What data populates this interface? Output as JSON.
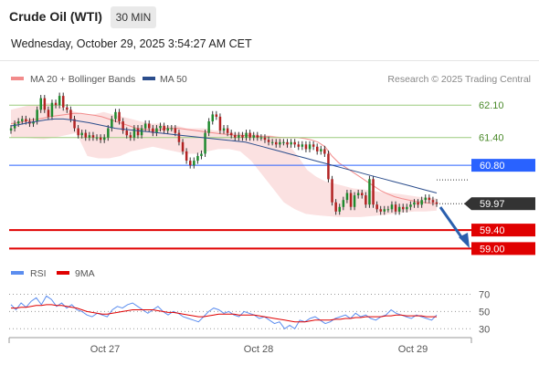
{
  "header": {
    "title": "Crude Oil (WTI)",
    "timeframe": "30 MIN",
    "datetime": "Wednesday, October 29, 2025 3:54:27 AM CET"
  },
  "legend": {
    "bb_label": "MA 20 + Bollinger Bands",
    "ma50_label": "MA 50",
    "credit": "Research © 2025 Trading Central",
    "rsi_label": "RSI",
    "rsi_ma_label": "9MA"
  },
  "colors": {
    "bull": "#1f8a2e",
    "bear": "#b22222",
    "bb_fill": "#fbe1e1",
    "bb_line": "#f28b8b",
    "ma50": "#2b4d8c",
    "level_green": "#9ccc7e",
    "level_blue": "#2962ff",
    "level_red": "#e00000",
    "rsi": "#5b8def",
    "rsi_ma": "#e00000"
  },
  "chart_data": [
    {
      "type": "candlestick",
      "x_tick_labels": [
        "Oct 27",
        "Oct 28",
        "Oct 29"
      ],
      "y_range": [
        58.85,
        62.4
      ],
      "last_price": 59.97,
      "levels": [
        {
          "value": 62.1,
          "label": "62.10",
          "kind": "resistance"
        },
        {
          "value": 61.4,
          "label": "61.40",
          "kind": "resistance"
        },
        {
          "value": 60.8,
          "label": "60.80",
          "kind": "pivot"
        },
        {
          "value": 59.4,
          "label": "59.40",
          "kind": "support"
        },
        {
          "value": 59.0,
          "label": "59.00",
          "kind": "support"
        }
      ],
      "last_price_label": "59.97",
      "closes": [
        61.6,
        61.7,
        61.75,
        61.8,
        61.75,
        61.7,
        61.75,
        62.0,
        62.25,
        62.0,
        61.85,
        62.15,
        62.1,
        62.3,
        62.05,
        62.0,
        61.8,
        61.6,
        61.45,
        61.5,
        61.4,
        61.45,
        61.4,
        61.4,
        61.35,
        61.4,
        61.6,
        61.8,
        61.95,
        61.75,
        61.55,
        61.45,
        61.4,
        61.6,
        61.45,
        61.6,
        61.7,
        61.6,
        61.5,
        61.6,
        61.65,
        61.55,
        61.6,
        61.6,
        61.5,
        61.3,
        61.1,
        60.9,
        60.8,
        60.9,
        61.0,
        61.05,
        61.5,
        61.75,
        61.9,
        61.85,
        61.55,
        61.6,
        61.5,
        61.45,
        61.4,
        61.45,
        61.4,
        61.5,
        61.4,
        61.45,
        61.4,
        61.4,
        61.35,
        61.3,
        61.3,
        61.25,
        61.3,
        61.3,
        61.25,
        61.3,
        61.25,
        61.2,
        61.25,
        61.15,
        61.25,
        61.2,
        61.1,
        61.15,
        61.05,
        60.5,
        60.0,
        59.8,
        59.9,
        60.05,
        60.2,
        59.9,
        60.15,
        60.2,
        60.15,
        59.95,
        60.5,
        59.95,
        59.85,
        59.8,
        59.85,
        59.85,
        59.95,
        59.8,
        59.9,
        59.85,
        59.9,
        59.95,
        60.0,
        59.95,
        60.05,
        60.1,
        60.05,
        60.0,
        59.97
      ],
      "bollinger_mid": [
        61.7,
        61.72,
        61.75,
        61.78,
        61.8,
        61.83,
        61.86,
        61.88,
        61.9,
        61.92,
        61.92,
        61.9,
        61.88,
        61.85,
        61.8,
        61.75,
        61.7,
        61.65,
        61.6,
        61.58,
        61.56,
        61.55,
        61.6,
        61.6,
        61.6,
        61.58,
        61.56,
        61.54,
        61.52,
        61.5,
        61.48,
        61.47,
        61.45,
        61.45,
        61.44,
        61.43,
        61.42,
        61.42,
        61.41,
        61.4,
        61.4,
        61.4,
        61.38,
        61.35,
        61.3,
        61.2,
        61.0,
        60.85,
        60.75,
        60.65,
        60.55,
        60.45,
        60.35,
        60.25,
        60.18,
        60.12,
        60.08,
        60.05,
        60.02,
        60.0,
        59.98,
        59.97
      ],
      "bollinger_upper": [
        62.0,
        62.05,
        62.1,
        62.1,
        62.15,
        62.1,
        62.0,
        61.95,
        61.9,
        61.9,
        61.95,
        61.9,
        61.85,
        61.8,
        61.75,
        61.7,
        61.7,
        61.65,
        61.65,
        61.6,
        61.6,
        61.6,
        61.55,
        61.55,
        61.5,
        61.5,
        61.5,
        61.45,
        61.45,
        61.4,
        61.25,
        61.0,
        60.7,
        60.55,
        60.45,
        60.4,
        60.35,
        60.3,
        60.28,
        60.25,
        60.22,
        60.2,
        60.18,
        60.15,
        60.12,
        60.1,
        60.08
      ],
      "bollinger_lower": [
        61.4,
        61.4,
        61.38,
        61.36,
        61.4,
        61.45,
        61.5,
        61.0,
        60.95,
        60.95,
        61.0,
        61.1,
        61.15,
        61.2,
        61.15,
        61.1,
        61.05,
        61.05,
        61.1,
        61.15,
        61.15,
        61.1,
        60.9,
        60.6,
        60.3,
        60.0,
        59.85,
        59.75,
        59.72,
        59.7,
        59.68,
        59.68,
        59.68,
        59.7,
        59.72,
        59.75,
        59.78,
        59.8,
        59.8,
        59.82
      ],
      "ma50": [
        61.65,
        61.68,
        61.72,
        61.75,
        61.78,
        61.8,
        61.8,
        61.78,
        61.75,
        61.72,
        61.68,
        61.64,
        61.6,
        61.58,
        61.56,
        61.54,
        61.52,
        61.5,
        61.48,
        61.46,
        61.44,
        61.42,
        61.4,
        61.38,
        61.36,
        61.34,
        61.32,
        61.3,
        61.25,
        61.2,
        61.15,
        61.1,
        61.05,
        61.0,
        60.95,
        60.9,
        60.85,
        60.8,
        60.75,
        60.7,
        60.65,
        60.6,
        60.55,
        60.5,
        60.45,
        60.4,
        60.35,
        60.3,
        60.25,
        60.2
      ]
    },
    {
      "type": "line",
      "name": "RSI panel",
      "y_range": [
        25,
        78
      ],
      "y_ticks": [
        70,
        50,
        30
      ],
      "y_tick_labels": [
        "70",
        "50",
        "30"
      ],
      "series": [
        {
          "name": "RSI",
          "values": [
            58,
            52,
            60,
            55,
            62,
            66,
            58,
            68,
            64,
            56,
            60,
            54,
            58,
            52,
            50,
            46,
            44,
            48,
            46,
            44,
            52,
            56,
            54,
            58,
            60,
            56,
            52,
            48,
            52,
            56,
            50,
            46,
            50,
            48,
            44,
            42,
            40,
            38,
            44,
            50,
            54,
            52,
            48,
            50,
            46,
            44,
            50,
            48,
            46,
            42,
            44,
            40,
            36,
            38,
            30,
            34,
            30,
            40,
            38,
            42,
            44,
            40,
            36,
            38,
            42,
            44,
            46,
            42,
            48,
            44,
            46,
            42,
            40,
            44,
            46,
            52,
            48,
            46,
            44,
            42,
            46,
            44,
            42,
            40,
            46
          ]
        },
        {
          "name": "9MA",
          "values": [
            54,
            54,
            55,
            55,
            56,
            57,
            57,
            58,
            58,
            57,
            57,
            56,
            55,
            54,
            52,
            50,
            49,
            48,
            47,
            47,
            48,
            49,
            50,
            51,
            52,
            52,
            52,
            52,
            52,
            51,
            50,
            49,
            49,
            48,
            47,
            46,
            45,
            44,
            44,
            45,
            46,
            47,
            47,
            47,
            47,
            46,
            46,
            46,
            46,
            45,
            44,
            43,
            42,
            41,
            40,
            39,
            38,
            38,
            38,
            39,
            40,
            40,
            40,
            40,
            41,
            41,
            42,
            42,
            43,
            43,
            44,
            44,
            44,
            44,
            45,
            45,
            46,
            46,
            45,
            45,
            45,
            45,
            44,
            44,
            44
          ]
        }
      ]
    }
  ]
}
